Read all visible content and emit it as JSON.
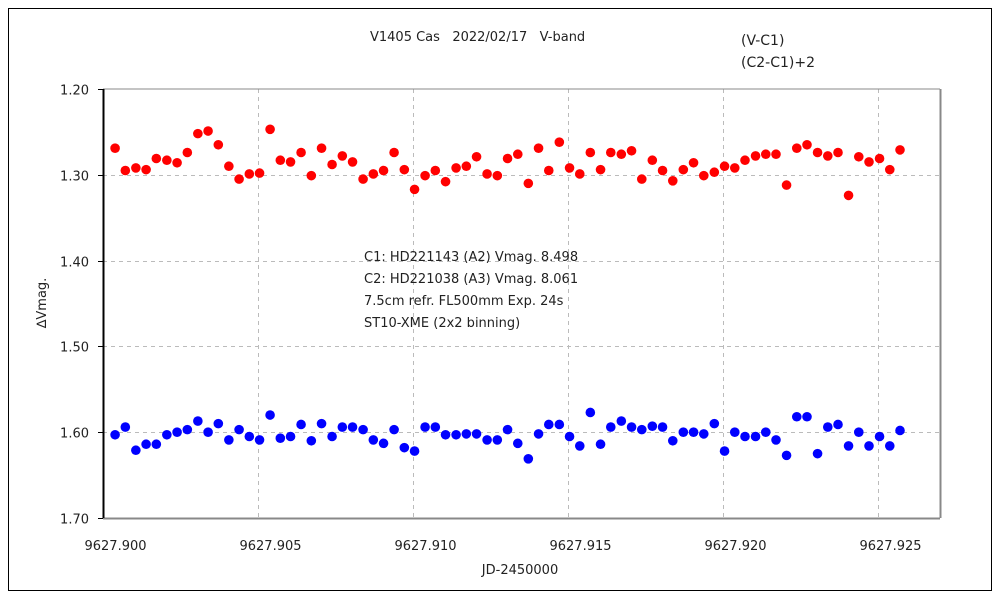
{
  "chart_data": {
    "type": "scatter",
    "title": "V1405 Cas   2022/02/17   V-band",
    "xlabel": "JD-2450000",
    "ylabel": "∆Vmag.",
    "xlim": [
      9627.9,
      9627.927
    ],
    "ylim": [
      1.2,
      1.7
    ],
    "y_inverted": true,
    "grid": true,
    "legend_position": "top-right",
    "x_ticks": [
      "9627.900",
      "9627.905",
      "9627.910",
      "9627.915",
      "9627.920",
      "9627.925"
    ],
    "x_tick_values": [
      9627.9,
      9627.905,
      9627.91,
      9627.915,
      9627.92,
      9627.925
    ],
    "y_ticks": [
      "1.20",
      "1.30",
      "1.40",
      "1.50",
      "1.60",
      "1.70"
    ],
    "y_tick_values": [
      1.2,
      1.3,
      1.4,
      1.5,
      1.6,
      1.7
    ],
    "annotations": [
      "C1: HD221143 (A2) Vmag. 8.498",
      "C2: HD221038 (A3) Vmag. 8.061",
      "7.5cm refr. FL500mm Exp. 24s",
      "ST10-XME (2x2 binning)"
    ],
    "x": [
      9627.90039,
      9627.90072,
      9627.90106,
      9627.90139,
      9627.90172,
      9627.90206,
      9627.90239,
      9627.90272,
      9627.90306,
      9627.90339,
      9627.90372,
      9627.90406,
      9627.90439,
      9627.90472,
      9627.90505,
      9627.90539,
      9627.90572,
      9627.90605,
      9627.90639,
      9627.90672,
      9627.90705,
      9627.90739,
      9627.90772,
      9627.90805,
      9627.90839,
      9627.90872,
      9627.90905,
      9627.90939,
      9627.90972,
      9627.91005,
      9627.91039,
      9627.91072,
      9627.91105,
      9627.91139,
      9627.91172,
      9627.91205,
      9627.91239,
      9627.91272,
      9627.91305,
      9627.91338,
      9627.91372,
      9627.91405,
      9627.91438,
      9627.91472,
      9627.91505,
      9627.91538,
      9627.91572,
      9627.91605,
      9627.91638,
      9627.91672,
      9627.91705,
      9627.91738,
      9627.91772,
      9627.91805,
      9627.91838,
      9627.91872,
      9627.91905,
      9627.91938,
      9627.91972,
      9627.92005,
      9627.92038,
      9627.92071,
      9627.92105,
      9627.92138,
      9627.92171,
      9627.92205,
      9627.92238,
      9627.92271,
      9627.92305,
      9627.92338,
      9627.92371,
      9627.92405,
      9627.92438,
      9627.92471,
      9627.92505,
      9627.92538,
      9627.92571
    ],
    "series": [
      {
        "name": "(V-C1)",
        "color": "#ff0000",
        "values": [
          1.269,
          1.295,
          1.292,
          1.294,
          1.281,
          1.283,
          1.286,
          1.274,
          1.252,
          1.249,
          1.265,
          1.29,
          1.305,
          1.299,
          1.298,
          1.247,
          1.283,
          1.285,
          1.274,
          1.301,
          1.269,
          1.288,
          1.278,
          1.285,
          1.305,
          1.299,
          1.295,
          1.274,
          1.294,
          1.317,
          1.301,
          1.295,
          1.308,
          1.292,
          1.29,
          1.279,
          1.299,
          1.301,
          1.281,
          1.276,
          1.31,
          1.269,
          1.295,
          1.262,
          1.292,
          1.299,
          1.274,
          1.294,
          1.274,
          1.276,
          1.272,
          1.305,
          1.283,
          1.295,
          1.307,
          1.294,
          1.286,
          1.301,
          1.297,
          1.29,
          1.292,
          1.283,
          1.278,
          1.276,
          1.276,
          1.312,
          1.269,
          1.265,
          1.274,
          1.278,
          1.274,
          1.324,
          1.279,
          1.285,
          1.281,
          1.294,
          1.271
        ]
      },
      {
        "name": "(C2-C1)+2",
        "color": "#0000ff",
        "values": [
          1.603,
          1.594,
          1.621,
          1.614,
          1.614,
          1.603,
          1.6,
          1.597,
          1.587,
          1.6,
          1.59,
          1.609,
          1.597,
          1.605,
          1.609,
          1.58,
          1.607,
          1.605,
          1.591,
          1.61,
          1.59,
          1.605,
          1.594,
          1.594,
          1.597,
          1.609,
          1.613,
          1.597,
          1.618,
          1.622,
          1.594,
          1.594,
          1.603,
          1.603,
          1.602,
          1.602,
          1.609,
          1.609,
          1.597,
          1.613,
          1.631,
          1.602,
          1.591,
          1.591,
          1.605,
          1.616,
          1.577,
          1.614,
          1.594,
          1.587,
          1.594,
          1.597,
          1.593,
          1.594,
          1.61,
          1.6,
          1.6,
          1.602,
          1.59,
          1.622,
          1.6,
          1.605,
          1.605,
          1.6,
          1.609,
          1.627,
          1.582,
          1.582,
          1.625,
          1.594,
          1.591,
          1.616,
          1.6,
          1.616,
          1.605,
          1.616,
          1.598
        ]
      }
    ]
  }
}
